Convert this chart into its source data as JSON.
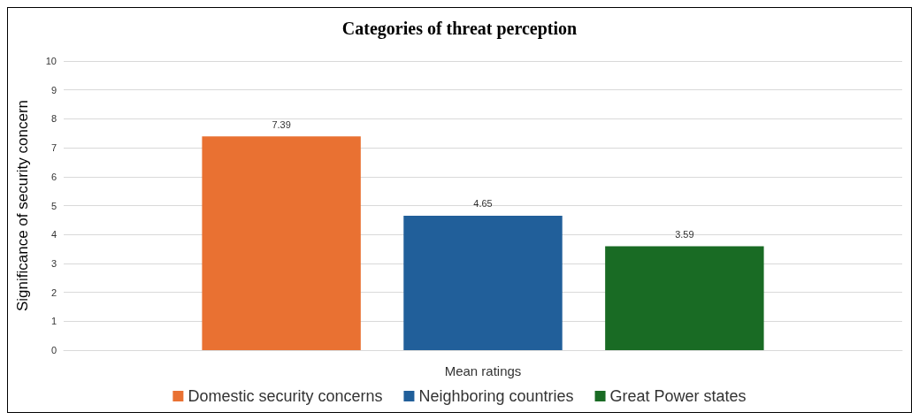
{
  "chart_data": {
    "type": "bar",
    "title": "Categories of threat perception",
    "ylabel": "Significance of security concern",
    "categories": [
      "Mean ratings"
    ],
    "series": [
      {
        "name": "Domestic security concerns",
        "color": "#e97132",
        "values": [
          7.39
        ]
      },
      {
        "name": "Neighboring countries",
        "color": "#215f9a",
        "values": [
          4.65
        ]
      },
      {
        "name": "Great Power states",
        "color": "#196b24",
        "values": [
          3.59
        ]
      }
    ],
    "ylim": [
      0,
      10
    ],
    "yticks": [
      0,
      1,
      2,
      3,
      4,
      5,
      6,
      7,
      8,
      9,
      10
    ],
    "grid": "y",
    "legend": "bottom",
    "data_labels": true
  }
}
